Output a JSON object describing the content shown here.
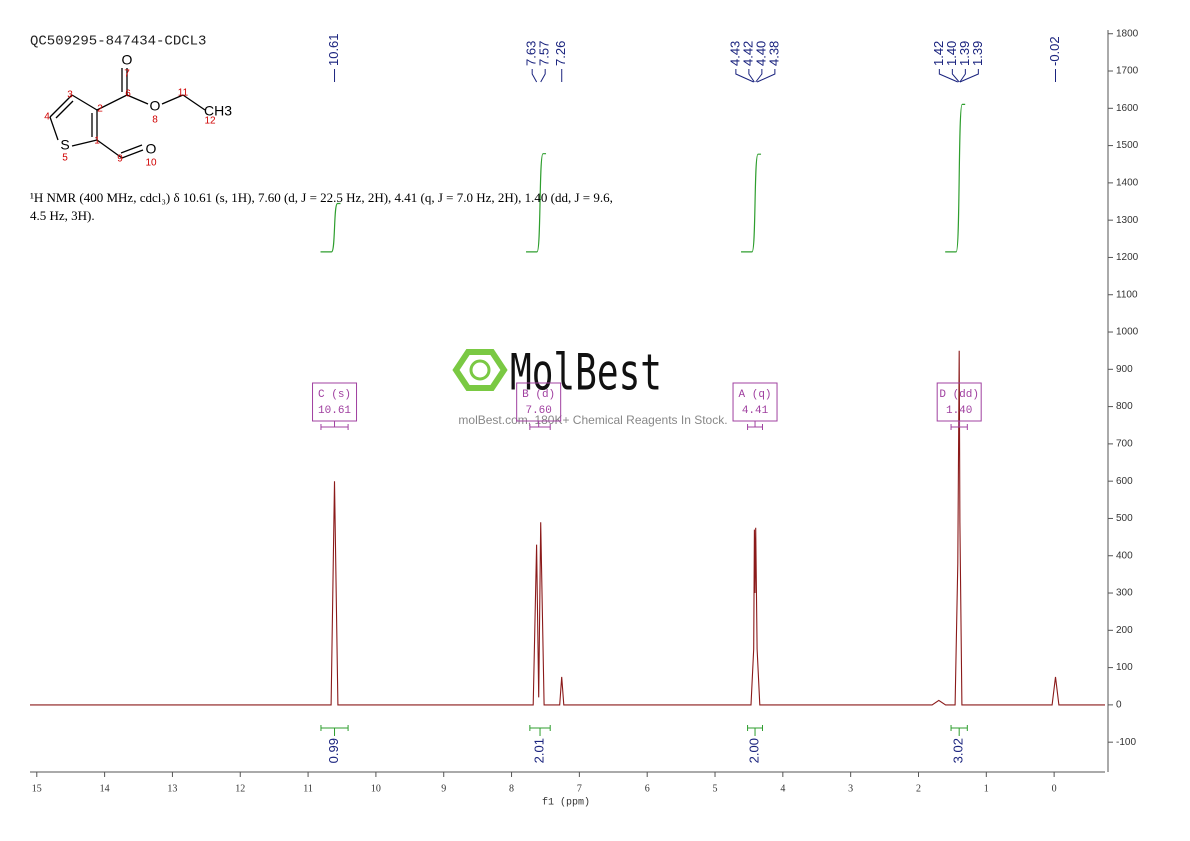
{
  "description": "¹H NMR (400 MHz, cdcl₃) δ 10.61 (s, 1H), 7.60 (d, J = 22.5 Hz, 2H), 4.41 (q, J = 7.0 Hz, 2H), 1.40 (dd, J = 9.6, 4.5 Hz, 3H).",
  "structure": {
    "labels": [
      "O",
      "O",
      "S",
      "O",
      "CH3",
      "1",
      "2",
      "3",
      "4",
      "5",
      "6",
      "7",
      "8",
      "9",
      "10",
      "11",
      "12"
    ]
  },
  "watermark": {
    "brand": "MolBest",
    "tagline": "molBest.com, 180K+ Chemical Reagents In Stock."
  },
  "chart_data": {
    "type": "line",
    "title": "QC509295-847434-CDCL3",
    "x_label": "f1 (ppm)",
    "color": "#8b1a1a",
    "xlim": [
      15.1,
      -0.75
    ],
    "ylim": [
      -180,
      1810
    ],
    "xticks": [
      15,
      14,
      13,
      12,
      11,
      10,
      9,
      8,
      7,
      6,
      5,
      4,
      3,
      2,
      1,
      0
    ],
    "yticks": [
      -100,
      0,
      100,
      200,
      300,
      400,
      500,
      600,
      700,
      800,
      900,
      1000,
      1100,
      1200,
      1300,
      1400,
      1500,
      1600,
      1700,
      1800
    ],
    "x": [
      15.1,
      10.66,
      10.61,
      10.56,
      7.68,
      7.63,
      7.6,
      7.57,
      7.52,
      7.29,
      7.26,
      7.23,
      4.47,
      4.43,
      4.42,
      4.41,
      4.4,
      4.38,
      4.34,
      1.8,
      1.7,
      1.6,
      1.46,
      1.42,
      1.4,
      1.39,
      1.36,
      0.03,
      -0.02,
      -0.07,
      -0.75
    ],
    "values": [
      0,
      0,
      600,
      0,
      0,
      430,
      20,
      490,
      0,
      0,
      75,
      0,
      0,
      150,
      470,
      300,
      475,
      150,
      0,
      0,
      12,
      0,
      0,
      380,
      950,
      490,
      0,
      0,
      75,
      0,
      0
    ],
    "peak_labels": [
      10.61,
      7.63,
      7.57,
      7.26,
      4.43,
      4.42,
      {
        "value": 4.4,
        "label": "4.40"
      },
      4.38,
      1.42,
      {
        "value": 1.4,
        "label": "1.40"
      },
      1.39,
      1.39,
      -0.02
    ],
    "integrals": [
      {
        "from": 10.81,
        "to": 10.41,
        "value": 0.99
      },
      {
        "from": 7.73,
        "to": 7.43,
        "value": 2.01
      },
      {
        "from": 4.52,
        "to": 4.3,
        "value": 2,
        "label": "2.00"
      },
      {
        "from": 1.52,
        "to": 1.28,
        "value": 3.02
      }
    ],
    "multiplets": [
      {
        "name": "C (s)",
        "shift": 10.61
      },
      {
        "name": "B (d)",
        "shift": {
          "value": 7.6,
          "label": "7.60"
        }
      },
      {
        "name": "A (q)",
        "shift": 4.41
      },
      {
        "name": "D (dd)",
        "shift": {
          "value": 1.4,
          "label": "1.40"
        }
      }
    ]
  }
}
